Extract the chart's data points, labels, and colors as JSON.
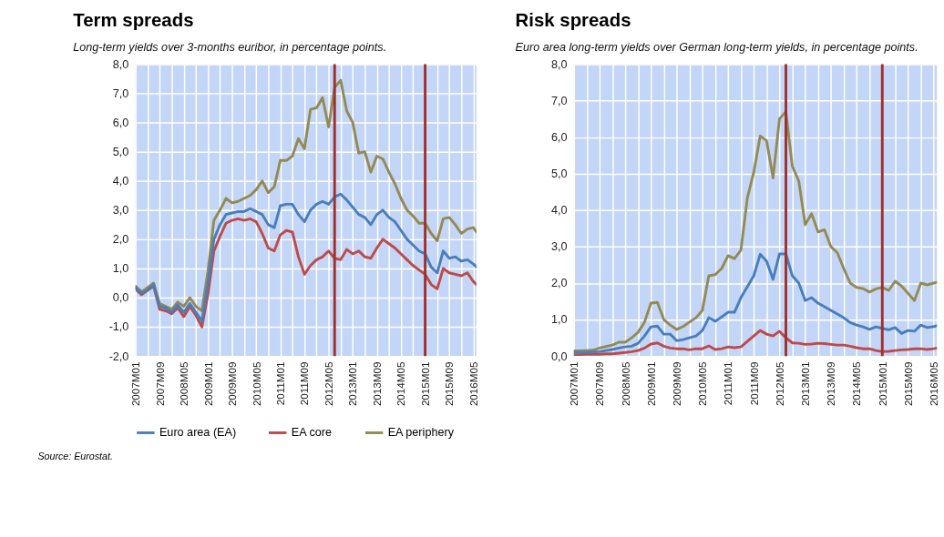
{
  "chart_data": [
    {
      "type": "line",
      "title": "Term spreads",
      "subtitle": "Long-term yields over 3-months euribor, in percentage points.",
      "x": [
        "2007-01",
        "2007-03",
        "2007-05",
        "2007-07",
        "2007-09",
        "2007-11",
        "2008-01",
        "2008-03",
        "2008-05",
        "2008-07",
        "2008-09",
        "2008-11",
        "2009-01",
        "2009-03",
        "2009-05",
        "2009-07",
        "2009-09",
        "2009-11",
        "2010-01",
        "2010-03",
        "2010-05",
        "2010-07",
        "2010-09",
        "2010-11",
        "2011-01",
        "2011-03",
        "2011-05",
        "2011-07",
        "2011-09",
        "2011-11",
        "2012-01",
        "2012-03",
        "2012-05",
        "2012-07",
        "2012-09",
        "2012-11",
        "2013-01",
        "2013-03",
        "2013-05",
        "2013-07",
        "2013-09",
        "2013-11",
        "2014-01",
        "2014-03",
        "2014-05",
        "2014-07",
        "2014-09",
        "2014-11",
        "2015-01",
        "2015-03",
        "2015-05",
        "2015-07",
        "2015-09",
        "2015-11",
        "2016-01",
        "2016-03",
        "2016-05",
        "2016-06"
      ],
      "series": [
        {
          "name": "Euro area (EA)",
          "color": "#4a7ebb",
          "values": [
            0.35,
            0.15,
            0.25,
            0.45,
            -0.3,
            -0.35,
            -0.5,
            -0.25,
            -0.5,
            -0.2,
            -0.5,
            -0.8,
            0.5,
            2.0,
            2.5,
            2.85,
            2.9,
            2.95,
            2.95,
            3.05,
            2.95,
            2.85,
            2.5,
            2.4,
            3.15,
            3.2,
            3.2,
            2.85,
            2.6,
            3.0,
            3.2,
            3.3,
            3.2,
            3.45,
            3.55,
            3.35,
            3.1,
            2.85,
            2.75,
            2.5,
            2.85,
            3.0,
            2.75,
            2.6,
            2.3,
            2.0,
            1.8,
            1.6,
            1.5,
            1.05,
            0.85,
            1.6,
            1.35,
            1.4,
            1.25,
            1.3,
            1.15,
            1.05
          ]
        },
        {
          "name": "EA core",
          "color": "#be4b48",
          "values": [
            0.3,
            0.1,
            0.25,
            0.4,
            -0.4,
            -0.45,
            -0.55,
            -0.35,
            -0.65,
            -0.3,
            -0.6,
            -1.0,
            0.1,
            1.6,
            2.1,
            2.55,
            2.65,
            2.7,
            2.65,
            2.7,
            2.6,
            2.2,
            1.7,
            1.6,
            2.15,
            2.3,
            2.25,
            1.4,
            0.8,
            1.1,
            1.3,
            1.4,
            1.6,
            1.35,
            1.3,
            1.65,
            1.5,
            1.6,
            1.4,
            1.35,
            1.7,
            2.0,
            1.85,
            1.7,
            1.5,
            1.3,
            1.1,
            0.95,
            0.8,
            0.45,
            0.3,
            1.0,
            0.85,
            0.8,
            0.75,
            0.85,
            0.55,
            0.45
          ]
        },
        {
          "name": "EA periphery",
          "color": "#948a54",
          "values": [
            0.4,
            0.2,
            0.35,
            0.5,
            -0.2,
            -0.3,
            -0.4,
            -0.15,
            -0.3,
            0.0,
            -0.3,
            -0.45,
            0.9,
            2.65,
            3.0,
            3.4,
            3.25,
            3.3,
            3.4,
            3.5,
            3.7,
            4.0,
            3.6,
            3.8,
            4.7,
            4.7,
            4.85,
            5.45,
            5.1,
            6.45,
            6.5,
            6.85,
            5.85,
            7.2,
            7.45,
            6.4,
            6.0,
            4.95,
            5.0,
            4.3,
            4.85,
            4.75,
            4.3,
            3.9,
            3.4,
            3.0,
            2.8,
            2.55,
            2.55,
            2.2,
            1.95,
            2.7,
            2.75,
            2.5,
            2.2,
            2.35,
            2.4,
            2.25
          ]
        }
      ],
      "xlim": [
        "2007-01",
        "2016-06"
      ],
      "xticks": [
        {
          "value": "2007-01",
          "label": "2007M01"
        },
        {
          "value": "2007-05",
          "label": null
        },
        {
          "value": "2007-09",
          "label": "2007M09"
        },
        {
          "value": "2008-01",
          "label": null
        },
        {
          "value": "2008-05",
          "label": "2008M05"
        },
        {
          "value": "2008-09",
          "label": null
        },
        {
          "value": "2009-01",
          "label": "2009M01"
        },
        {
          "value": "2009-05",
          "label": null
        },
        {
          "value": "2009-09",
          "label": "2009M09"
        },
        {
          "value": "2010-01",
          "label": null
        },
        {
          "value": "2010-05",
          "label": "2010M05"
        },
        {
          "value": "2010-09",
          "label": null
        },
        {
          "value": "2011-01",
          "label": "2011M01"
        },
        {
          "value": "2011-05",
          "label": null
        },
        {
          "value": "2011-09",
          "label": "2011M09"
        },
        {
          "value": "2012-01",
          "label": null
        },
        {
          "value": "2012-05",
          "label": "2012M05"
        },
        {
          "value": "2012-09",
          "label": null
        },
        {
          "value": "2013-01",
          "label": "2013M01"
        },
        {
          "value": "2013-05",
          "label": null
        },
        {
          "value": "2013-09",
          "label": "2013M09"
        },
        {
          "value": "2014-01",
          "label": null
        },
        {
          "value": "2014-05",
          "label": "2014M05"
        },
        {
          "value": "2014-09",
          "label": null
        },
        {
          "value": "2015-01",
          "label": "2015M01"
        },
        {
          "value": "2015-05",
          "label": null
        },
        {
          "value": "2015-09",
          "label": "2015M09"
        },
        {
          "value": "2016-01",
          "label": null
        },
        {
          "value": "2016-05",
          "label": "2016M05"
        }
      ],
      "ylim": [
        -2,
        8
      ],
      "yticks": [
        {
          "value": -2,
          "label": "-2,0"
        },
        {
          "value": -1,
          "label": "-1,0"
        },
        {
          "value": 0,
          "label": "0,0"
        },
        {
          "value": 1,
          "label": "1,0"
        },
        {
          "value": 2,
          "label": "2,0"
        },
        {
          "value": 3,
          "label": "3,0"
        },
        {
          "value": 4,
          "label": "4,0"
        },
        {
          "value": 5,
          "label": "5,0"
        },
        {
          "value": 6,
          "label": "6,0"
        },
        {
          "value": 7,
          "label": "7,0"
        },
        {
          "value": 8,
          "label": "8,0"
        }
      ],
      "ref_lines": [
        {
          "axis": "x",
          "value": "2012-07",
          "color": "#a0302a"
        },
        {
          "axis": "x",
          "value": "2015-01",
          "color": "#a0302a"
        }
      ],
      "grid": true,
      "legend": "bottom",
      "annotations": [
        "Source: Eurostat."
      ]
    },
    {
      "type": "line",
      "title": "Risk spreads",
      "subtitle": "Euro area long-term yields over German long-term yields, in percentage points.",
      "x": [
        "2007-01",
        "2007-03",
        "2007-05",
        "2007-07",
        "2007-09",
        "2007-11",
        "2008-01",
        "2008-03",
        "2008-05",
        "2008-07",
        "2008-09",
        "2008-11",
        "2009-01",
        "2009-03",
        "2009-05",
        "2009-07",
        "2009-09",
        "2009-11",
        "2010-01",
        "2010-03",
        "2010-05",
        "2010-07",
        "2010-09",
        "2010-11",
        "2011-01",
        "2011-03",
        "2011-05",
        "2011-07",
        "2011-09",
        "2011-11",
        "2012-01",
        "2012-03",
        "2012-05",
        "2012-07",
        "2012-09",
        "2012-11",
        "2013-01",
        "2013-03",
        "2013-05",
        "2013-07",
        "2013-09",
        "2013-11",
        "2014-01",
        "2014-03",
        "2014-05",
        "2014-07",
        "2014-09",
        "2014-11",
        "2015-01",
        "2015-03",
        "2015-05",
        "2015-07",
        "2015-09",
        "2015-11",
        "2016-01",
        "2016-03",
        "2016-05",
        "2016-06"
      ],
      "series": [
        {
          "name": "Euro area (EA)",
          "color": "#4a7ebb",
          "values": [
            0.1,
            0.1,
            0.1,
            0.11,
            0.12,
            0.15,
            0.18,
            0.22,
            0.25,
            0.27,
            0.35,
            0.55,
            0.8,
            0.82,
            0.6,
            0.6,
            0.42,
            0.45,
            0.5,
            0.55,
            0.7,
            1.05,
            0.95,
            1.07,
            1.2,
            1.2,
            1.6,
            1.9,
            2.2,
            2.79,
            2.6,
            2.1,
            2.8,
            2.8,
            2.2,
            2.0,
            1.52,
            1.6,
            1.45,
            1.35,
            1.25,
            1.15,
            1.05,
            0.92,
            0.85,
            0.8,
            0.73,
            0.8,
            0.76,
            0.72,
            0.78,
            0.62,
            0.7,
            0.68,
            0.85,
            0.78,
            0.81,
            0.83
          ]
        },
        {
          "name": "EA core",
          "color": "#be4b48",
          "values": [
            0.04,
            0.04,
            0.05,
            0.05,
            0.05,
            0.06,
            0.06,
            0.08,
            0.1,
            0.12,
            0.15,
            0.22,
            0.33,
            0.36,
            0.27,
            0.22,
            0.2,
            0.2,
            0.17,
            0.2,
            0.2,
            0.28,
            0.18,
            0.2,
            0.25,
            0.23,
            0.25,
            0.4,
            0.55,
            0.7,
            0.6,
            0.55,
            0.68,
            0.5,
            0.36,
            0.35,
            0.32,
            0.33,
            0.35,
            0.34,
            0.32,
            0.3,
            0.3,
            0.27,
            0.23,
            0.2,
            0.2,
            0.15,
            0.12,
            0.13,
            0.15,
            0.17,
            0.18,
            0.2,
            0.2,
            0.18,
            0.2,
            0.22
          ]
        },
        {
          "name": "EA periphery",
          "color": "#948a54",
          "values": [
            0.14,
            0.14,
            0.15,
            0.16,
            0.22,
            0.26,
            0.3,
            0.38,
            0.38,
            0.5,
            0.65,
            0.93,
            1.45,
            1.47,
            1.0,
            0.85,
            0.73,
            0.81,
            0.93,
            1.05,
            1.25,
            2.2,
            2.23,
            2.4,
            2.75,
            2.67,
            2.9,
            4.33,
            5.04,
            6.03,
            5.9,
            4.88,
            6.5,
            6.7,
            5.2,
            4.8,
            3.6,
            3.9,
            3.4,
            3.46,
            3.0,
            2.83,
            2.4,
            2.0,
            1.88,
            1.85,
            1.75,
            1.84,
            1.88,
            1.8,
            2.05,
            1.92,
            1.72,
            1.52,
            2.0,
            1.95,
            2.0,
            2.02
          ]
        }
      ],
      "xlim": [
        "2007-01",
        "2016-06"
      ],
      "xticks": [
        {
          "value": "2007-01",
          "label": "2007M01"
        },
        {
          "value": "2007-05",
          "label": null
        },
        {
          "value": "2007-09",
          "label": "2007M09"
        },
        {
          "value": "2008-01",
          "label": null
        },
        {
          "value": "2008-05",
          "label": "2008M05"
        },
        {
          "value": "2008-09",
          "label": null
        },
        {
          "value": "2009-01",
          "label": "2009M01"
        },
        {
          "value": "2009-05",
          "label": null
        },
        {
          "value": "2009-09",
          "label": "2009M09"
        },
        {
          "value": "2010-01",
          "label": null
        },
        {
          "value": "2010-05",
          "label": "2010M05"
        },
        {
          "value": "2010-09",
          "label": null
        },
        {
          "value": "2011-01",
          "label": "2011M01"
        },
        {
          "value": "2011-05",
          "label": null
        },
        {
          "value": "2011-09",
          "label": "2011M09"
        },
        {
          "value": "2012-01",
          "label": null
        },
        {
          "value": "2012-05",
          "label": "2012M05"
        },
        {
          "value": "2012-09",
          "label": null
        },
        {
          "value": "2013-01",
          "label": "2013M01"
        },
        {
          "value": "2013-05",
          "label": null
        },
        {
          "value": "2013-09",
          "label": "2013M09"
        },
        {
          "value": "2014-01",
          "label": null
        },
        {
          "value": "2014-05",
          "label": "2014M05"
        },
        {
          "value": "2014-09",
          "label": null
        },
        {
          "value": "2015-01",
          "label": "2015M01"
        },
        {
          "value": "2015-05",
          "label": null
        },
        {
          "value": "2015-09",
          "label": "2015M09"
        },
        {
          "value": "2016-01",
          "label": null
        },
        {
          "value": "2016-05",
          "label": "2016M05"
        }
      ],
      "ylim": [
        0,
        8
      ],
      "yticks": [
        {
          "value": 0,
          "label": "0,0"
        },
        {
          "value": 1,
          "label": "1,0"
        },
        {
          "value": 2,
          "label": "2,0"
        },
        {
          "value": 3,
          "label": "3,0"
        },
        {
          "value": 4,
          "label": "4,0"
        },
        {
          "value": 5,
          "label": "5,0"
        },
        {
          "value": 6,
          "label": "6,0"
        },
        {
          "value": 7,
          "label": "7,0"
        },
        {
          "value": 8,
          "label": "8,0"
        }
      ],
      "ref_lines": [
        {
          "axis": "x",
          "value": "2012-07",
          "color": "#a0302a"
        },
        {
          "axis": "x",
          "value": "2015-01",
          "color": "#a0302a"
        }
      ],
      "grid": true,
      "legend": "bottom"
    }
  ]
}
